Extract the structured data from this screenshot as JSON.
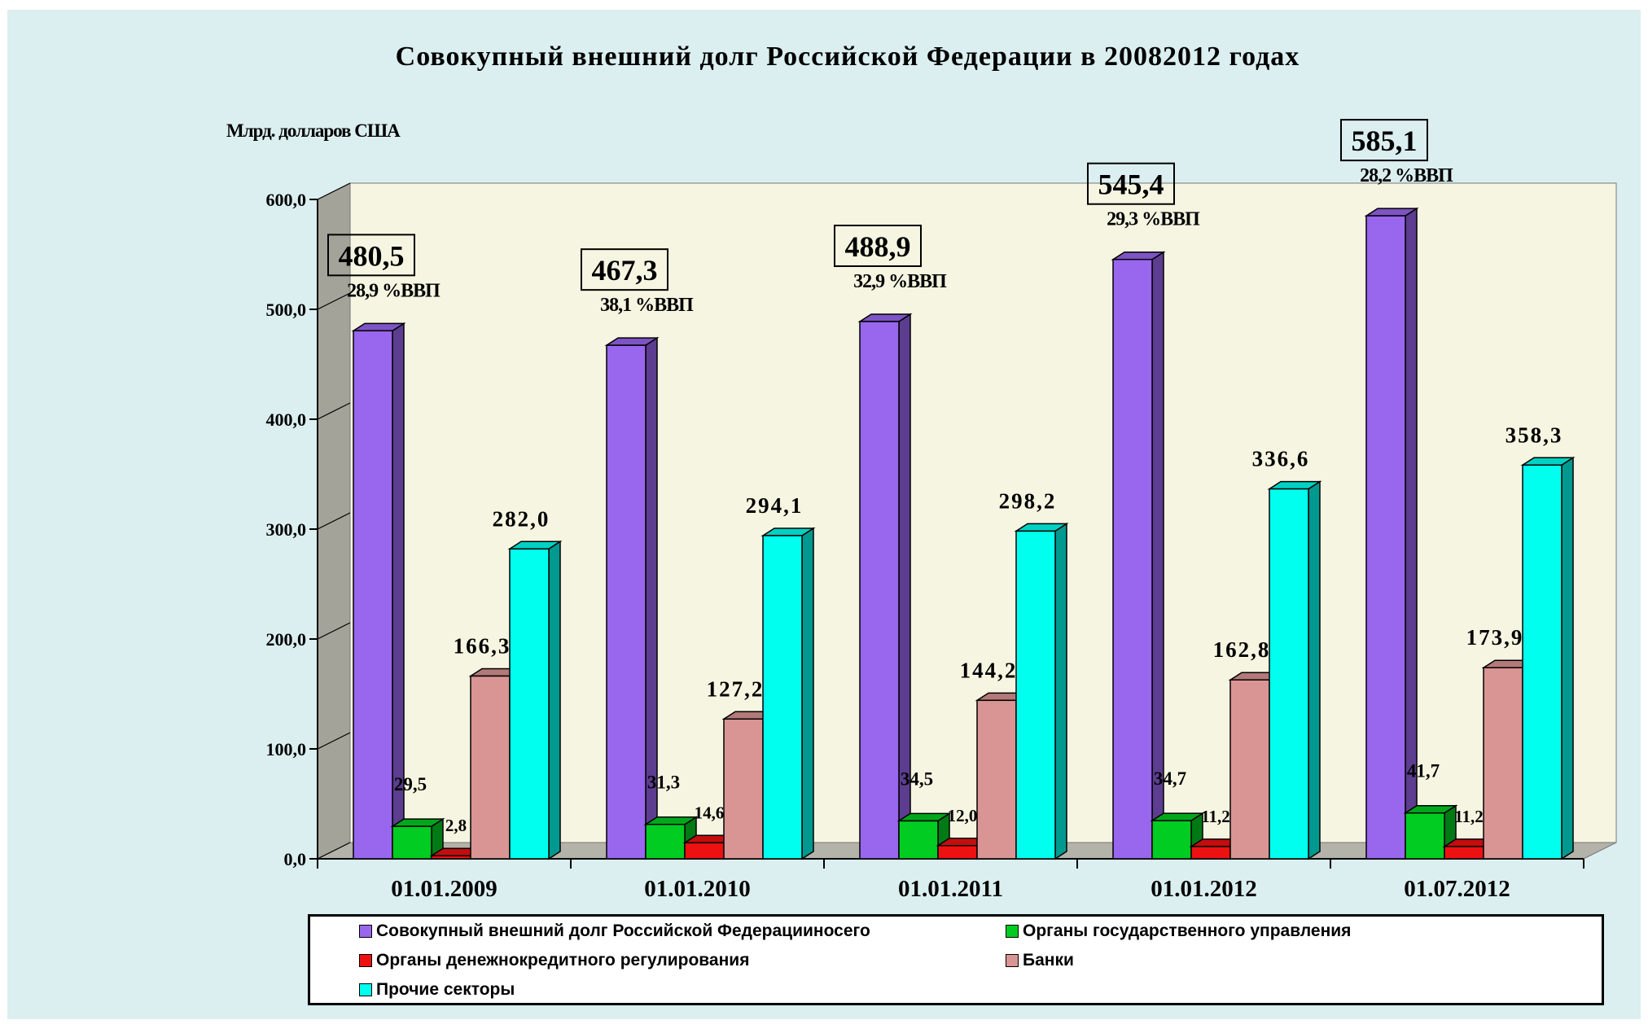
{
  "chart_data": {
    "type": "bar",
    "title": "Совокупный внешний долг Российской Федерации в 20082012 годах",
    "ylabel": "Млрд. долларов США",
    "ylim": [
      0,
      600
    ],
    "yticks": [
      "0,0",
      "100,0",
      "200,0",
      "300,0",
      "400,0",
      "500,0",
      "600,0"
    ],
    "categories": [
      "01.01.2009",
      "01.01.2010",
      "01.01.2011",
      "01.01.2012",
      "01.07.2012"
    ],
    "series": [
      {
        "name": "Совокупный внешний долг Российской Федерацииносего",
        "color": "#9966ee",
        "values": [
          480.5,
          467.3,
          488.9,
          545.4,
          585.1
        ],
        "labels": [
          "480,5",
          "467,3",
          "488,9",
          "545,4",
          "585,1"
        ]
      },
      {
        "name": "Органы государственного управления",
        "color": "#00cc22",
        "values": [
          29.5,
          31.3,
          34.5,
          34.7,
          41.7
        ],
        "labels": [
          "29,5",
          "31,3",
          "34,5",
          "34,7",
          "41,7"
        ]
      },
      {
        "name": "Органы денежнокредитного регулирования",
        "color": "#ee1111",
        "values": [
          2.8,
          14.6,
          12.0,
          11.2,
          11.2
        ],
        "labels": [
          "2,8",
          "14,6",
          "12,0",
          "11,2",
          "11,2"
        ]
      },
      {
        "name": "Банки",
        "color": "#d99594",
        "values": [
          166.3,
          127.2,
          144.2,
          162.8,
          173.9
        ],
        "labels": [
          "166,3",
          "127,2",
          "144,2",
          "162,8",
          "173,9"
        ]
      },
      {
        "name": "Прочие секторы",
        "color": "#00ffee",
        "values": [
          282.0,
          294.1,
          298.2,
          336.6,
          358.3
        ],
        "labels": [
          "282,0",
          "294,1",
          "298,2",
          "336,6",
          "358,3"
        ]
      }
    ],
    "gdp_share": [
      "28,9 %ВВП",
      "38,1 %ВВП",
      "32,9 %ВВП",
      "29,3 %ВВП",
      "28,2 %ВВП"
    ],
    "legend_position": "bottom",
    "grid": false
  }
}
